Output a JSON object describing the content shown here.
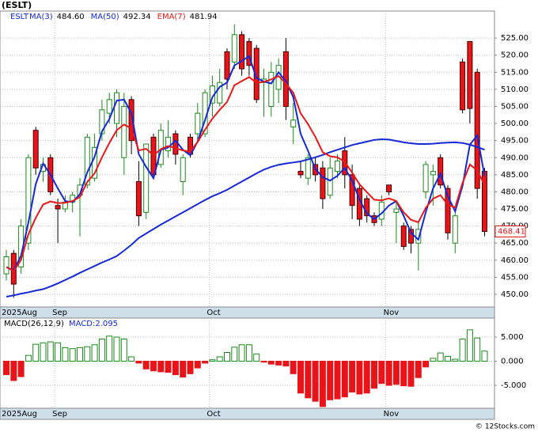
{
  "chart_data": [
    {
      "type": "candlestick",
      "title": "(ESLT)",
      "legend_symbol": "ESLT",
      "categories": [
        "2025Aug",
        null,
        null,
        null,
        null,
        null,
        null,
        "Sep",
        null,
        null,
        null,
        null,
        null,
        null,
        null,
        null,
        null,
        null,
        null,
        null,
        null,
        null,
        null,
        null,
        null,
        null,
        null,
        null,
        "Oct",
        null,
        null,
        null,
        null,
        null,
        null,
        null,
        null,
        null,
        null,
        null,
        null,
        null,
        null,
        null,
        null,
        null,
        null,
        null,
        null,
        null,
        null,
        null,
        "Nov",
        null,
        null,
        null,
        null,
        null,
        null,
        null,
        null,
        null,
        null,
        null,
        null,
        null
      ],
      "open": [
        456,
        462,
        458,
        465,
        498,
        486,
        490,
        476,
        475,
        477,
        479,
        482,
        484,
        497,
        503,
        500,
        490,
        507,
        483,
        474,
        496,
        488,
        492,
        497,
        483,
        496,
        497,
        497,
        506,
        506,
        521,
        518,
        526,
        524,
        522,
        512,
        505,
        510,
        521,
        499,
        486,
        484,
        488,
        487,
        479,
        486,
        492,
        485,
        481,
        478,
        473,
        472,
        482,
        474,
        470,
        469,
        465,
        480,
        485,
        490,
        481,
        465,
        518,
        524,
        515,
        486
      ],
      "high": [
        463,
        463,
        472,
        491,
        499,
        490,
        491,
        478,
        479,
        480,
        484,
        497,
        497,
        507,
        509,
        510,
        509,
        508,
        489,
        494,
        497,
        500,
        501,
        498,
        491,
        497,
        506,
        510,
        514,
        516,
        522,
        529,
        527,
        525,
        523,
        516,
        518,
        519,
        525,
        506,
        489,
        491,
        490,
        489,
        490,
        491,
        496,
        488,
        482,
        479,
        474,
        479,
        482,
        477,
        471,
        470,
        471,
        489,
        488,
        491,
        482,
        475,
        519,
        524,
        516,
        487
      ],
      "low": [
        454,
        449,
        456,
        463,
        485,
        483,
        479,
        465,
        474,
        474,
        467,
        481,
        483,
        495,
        500,
        496,
        485,
        491,
        470,
        472,
        484,
        487,
        490,
        488,
        479,
        490,
        495,
        496,
        502,
        505,
        510,
        516,
        514,
        514,
        506,
        502,
        502,
        506,
        501,
        494,
        484,
        482,
        483,
        475,
        478,
        484,
        481,
        472,
        470,
        471,
        470,
        470,
        479,
        465,
        463,
        462,
        457,
        478,
        476,
        481,
        466,
        462,
        503,
        500,
        478,
        467
      ],
      "close": [
        461,
        453,
        470,
        490,
        487,
        488,
        480,
        475,
        477,
        479,
        482,
        496,
        493,
        504,
        507,
        509,
        505,
        495,
        473,
        494,
        485,
        498,
        496,
        491,
        490,
        491,
        503,
        509,
        511,
        512,
        513,
        526,
        516,
        517,
        507,
        513,
        515,
        517,
        505,
        501,
        485,
        490,
        485,
        478,
        487,
        489,
        485,
        476,
        472,
        473,
        471,
        477,
        480,
        475,
        464,
        465,
        469,
        488,
        486,
        482,
        468,
        473,
        504,
        504.4,
        481,
        468.41
      ],
      "up_color": "#1a8a1a",
      "down_color": "#e8141a",
      "series": [
        {
          "name": "MA(3)",
          "legend_value": "484.60",
          "color": "#1428d8",
          "values": [
            458,
            457,
            461.3,
            471,
            482.3,
            488.3,
            485,
            481,
            477.3,
            477,
            479.3,
            485.7,
            490.3,
            497.7,
            501.3,
            506.7,
            507,
            503,
            491,
            487.3,
            484,
            492.3,
            493,
            495,
            492.3,
            490.7,
            494.7,
            501,
            507.7,
            510.7,
            512,
            517,
            518.3,
            519.7,
            513.3,
            512.3,
            511.7,
            515,
            512.3,
            507.7,
            497,
            492,
            486.7,
            484.3,
            483.3,
            484.7,
            487,
            483.3,
            477.7,
            473.7,
            472,
            473.7,
            476,
            477.3,
            473,
            468,
            466,
            474,
            481,
            485.3,
            478.7,
            474.3,
            481.7,
            493.8,
            496.5,
            484.6
          ]
        },
        {
          "name": "MA(50)",
          "legend_value": "492.34",
          "color": "#1428d8",
          "values": [
            449.3,
            449.7,
            450.2,
            450.6,
            451.1,
            451.5,
            452.3,
            453.2,
            454.2,
            455.2,
            456.3,
            457.3,
            458.3,
            459.3,
            460.2,
            461.2,
            462.8,
            464.5,
            466.5,
            467.8,
            469.1,
            470.4,
            471.6,
            472.8,
            474,
            475.2,
            476.4,
            477.6,
            478.7,
            479.6,
            480.6,
            481.8,
            483,
            484.2,
            485.4,
            486.5,
            487.3,
            487.9,
            488.3,
            488.6,
            488.9,
            489.5,
            490.1,
            490.8,
            491.6,
            492.3,
            493,
            493.7,
            494.2,
            494.7,
            495.2,
            495.4,
            495.3,
            494.9,
            494.5,
            494.2,
            494,
            494,
            494.1,
            494.3,
            494.4,
            494.5,
            494.3,
            493.8,
            493.1,
            492.34
          ]
        },
        {
          "name": "EMA(7)",
          "legend_value": "481.94",
          "color": "#e81818",
          "values": [
            458,
            456.8,
            460.1,
            467.6,
            472.4,
            476.3,
            477.2,
            476.7,
            476.8,
            477.3,
            478.5,
            482.9,
            485.4,
            490.1,
            494.3,
            498,
            499.7,
            498.5,
            492.1,
            492.6,
            490.7,
            492.5,
            493.4,
            492.8,
            492.1,
            491.8,
            494.6,
            498.2,
            501.4,
            504,
            506.3,
            511.2,
            512.4,
            513.6,
            511.9,
            512.2,
            512.9,
            513.9,
            511.7,
            509,
            503,
            499.8,
            496.1,
            491.6,
            490.4,
            490.1,
            488.8,
            485.6,
            482.2,
            479.9,
            477.7,
            477.5,
            478.1,
            477.3,
            474,
            471.8,
            471.1,
            475.3,
            478,
            479,
            476.3,
            475.4,
            482.6,
            488,
            486.3,
            481.94
          ]
        }
      ],
      "ylim": [
        446.3,
        532.9
      ],
      "yticks": [
        {
          "value": 450,
          "label": "450.00"
        },
        {
          "value": 455,
          "label": "455.00"
        },
        {
          "value": 460,
          "label": "460.00"
        },
        {
          "value": 465,
          "label": "465.00"
        },
        {
          "value": 470,
          "label": "470.00"
        },
        {
          "value": 475,
          "label": "475.00"
        },
        {
          "value": 480,
          "label": "480.00"
        },
        {
          "value": 485,
          "label": "485.00"
        },
        {
          "value": 490,
          "label": "490.00"
        },
        {
          "value": 495,
          "label": "495.00"
        },
        {
          "value": 500,
          "label": "500.00"
        },
        {
          "value": 505,
          "label": "505.00"
        },
        {
          "value": 510,
          "label": "510.00"
        },
        {
          "value": 515,
          "label": "515.00"
        },
        {
          "value": 520,
          "label": "520.00"
        },
        {
          "value": 525,
          "label": "525.00"
        }
      ],
      "grid": true
    },
    {
      "type": "histogram-bar",
      "title": "MACD(26,12,9)",
      "legend": "MACD:2.095",
      "categories": [
        "2025Aug",
        null,
        null,
        null,
        null,
        null,
        null,
        "Sep",
        null,
        null,
        null,
        null,
        null,
        null,
        null,
        null,
        null,
        null,
        null,
        null,
        null,
        null,
        null,
        null,
        null,
        null,
        null,
        null,
        "Oct",
        null,
        null,
        null,
        null,
        null,
        null,
        null,
        null,
        null,
        null,
        null,
        null,
        null,
        null,
        null,
        null,
        null,
        null,
        null,
        null,
        null,
        null,
        null,
        "Nov",
        null,
        null,
        null,
        null,
        null,
        null,
        null,
        null,
        null,
        null,
        null,
        null,
        null
      ],
      "values": [
        -2.8,
        -4.0,
        -3.2,
        1.2,
        3.5,
        3.8,
        4.0,
        3.8,
        2.8,
        2.6,
        2.8,
        3.0,
        3.4,
        4.6,
        5.2,
        5.0,
        4.6,
        0.9,
        -0.4,
        -1.6,
        -2.0,
        -2.2,
        -2.3,
        -2.8,
        -3.3,
        -2.6,
        -1.4,
        -0.4,
        0.3,
        0.9,
        1.8,
        2.9,
        3.4,
        3.4,
        1.5,
        -0.2,
        -0.6,
        -0.8,
        -1.0,
        -2.6,
        -6.6,
        -7.6,
        -8.3,
        -9.4,
        -8.0,
        -7.8,
        -7.4,
        -6.4,
        -6.8,
        -6.6,
        -5.6,
        -4.6,
        -5.0,
        -4.8,
        -5.1,
        -5.2,
        -3.4,
        -1.2,
        0.6,
        1.7,
        1.0,
        0.4,
        4.6,
        6.5,
        4.8,
        2.095
      ],
      "up_color": "#1a8a1a",
      "down_color": "#e8141a",
      "ylim": [
        -9.75,
        8.93
      ],
      "yticks": [
        {
          "value": 5,
          "label": "5.000"
        },
        {
          "value": 0,
          "label": "0.000"
        },
        {
          "value": -5,
          "label": "-5.000"
        }
      ],
      "grid": true
    }
  ],
  "footer": "© 12Stocks.com"
}
